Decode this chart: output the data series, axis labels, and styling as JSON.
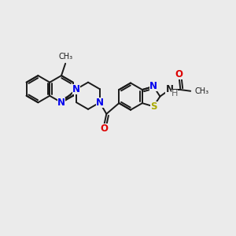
{
  "background_color": "#ebebeb",
  "bond_color": "#1a1a1a",
  "n_color": "#0000ee",
  "o_color": "#dd0000",
  "s_color": "#aaaa00",
  "h_color": "#606060",
  "line_width": 1.4,
  "font_size": 8.5,
  "fig_size": [
    3.0,
    3.0
  ],
  "dpi": 100,
  "xlim": [
    0,
    10
  ],
  "ylim": [
    0,
    10
  ]
}
